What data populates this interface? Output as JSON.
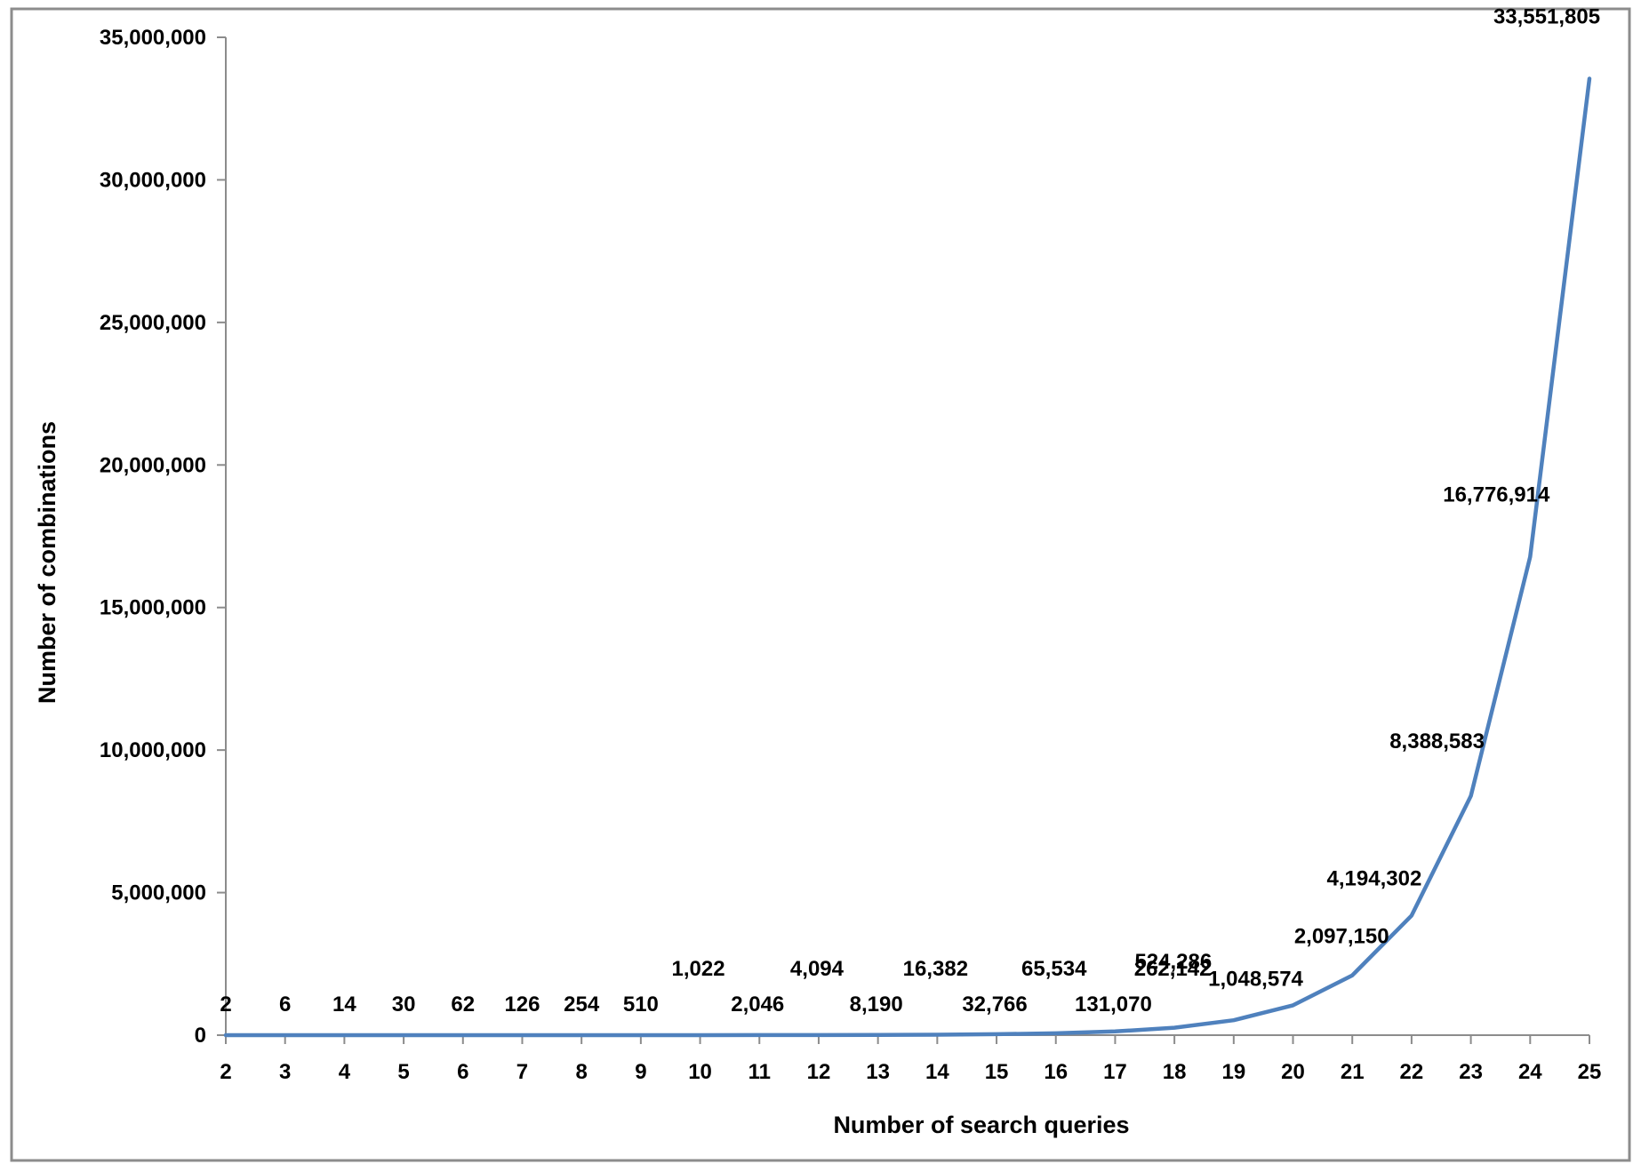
{
  "chart_data": {
    "type": "line",
    "title": "",
    "xlabel": "Number of search queries",
    "ylabel": "Number of combinations",
    "x": [
      2,
      3,
      4,
      5,
      6,
      7,
      8,
      9,
      10,
      11,
      12,
      13,
      14,
      15,
      16,
      17,
      18,
      19,
      20,
      21,
      22,
      23,
      24,
      25
    ],
    "series": [
      {
        "values": [
          2,
          6,
          14,
          30,
          62,
          126,
          254,
          510,
          1022,
          2046,
          4094,
          8190,
          16382,
          32766,
          65534,
          131070,
          262142,
          524286,
          1048574,
          2097150,
          4194302,
          8388583,
          16776914,
          33551805
        ],
        "labels": [
          "2",
          "6",
          "14",
          "30",
          "62",
          "126",
          "254",
          "510",
          "1,022",
          "2,046",
          "4,094",
          "8,190",
          "16,382",
          "32,766",
          "65,534",
          "131,070",
          "262,142",
          "524,286",
          "1,048,574",
          "2,097,150",
          "4,194,302",
          "8,388,583",
          "16,776,914",
          "33,551,805"
        ],
        "color": "#4f81bd"
      }
    ],
    "ylim": [
      0,
      35000000
    ],
    "yticks": [
      0,
      5000000,
      10000000,
      15000000,
      20000000,
      25000000,
      30000000,
      35000000
    ],
    "ytick_labels": [
      "0",
      "5,000,000",
      "10,000,000",
      "15,000,000",
      "20,000,000",
      "25,000,000",
      "30,000,000",
      "35,000,000"
    ],
    "xtick_labels": [
      "2",
      "3",
      "4",
      "5",
      "6",
      "7",
      "8",
      "9",
      "10",
      "11",
      "12",
      "13",
      "14",
      "15",
      "16",
      "17",
      "18",
      "19",
      "20",
      "21",
      "22",
      "23",
      "24",
      "25"
    ],
    "grid": false,
    "legend": "none"
  }
}
